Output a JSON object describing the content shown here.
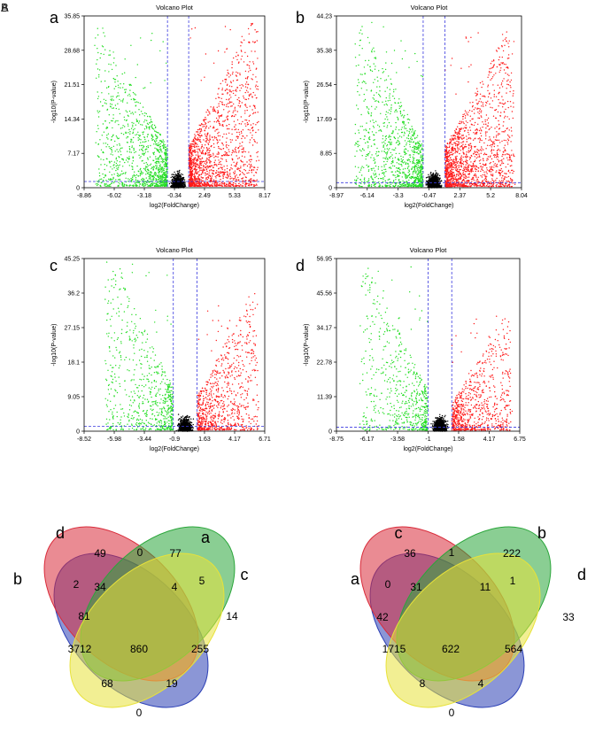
{
  "figure_letters": [
    "A",
    "B"
  ],
  "chart_data": [
    {
      "type": "scatter",
      "panel": "a",
      "title": "Volcano Plot",
      "xlabel": "log2(FoldChange)",
      "ylabel": "-log10(P-value)",
      "x_ticks": [
        "-8.86",
        "-6.02",
        "-3.18",
        "-0.34",
        "2.49",
        "5.33",
        "8.17"
      ],
      "y_ticks": [
        "0",
        "7.17",
        "14.34",
        "21.51",
        "28.68",
        "35.85"
      ],
      "xlim": [
        -8.86,
        8.17
      ],
      "ylim": [
        0,
        35.85
      ],
      "fc_cutoff": [
        -1,
        1
      ],
      "p_cutoff_log10": 1.3,
      "series": [
        {
          "name": "down",
          "color": "#22dd22",
          "approx_count": 1800,
          "x_range": [
            -8.0,
            -1.0
          ],
          "max_y": 33
        },
        {
          "name": "ns",
          "color": "#000000",
          "approx_count": 1500
        },
        {
          "name": "up",
          "color": "#ff1a1a",
          "approx_count": 2600,
          "x_range": [
            1.0,
            7.8
          ],
          "max_y": 34
        }
      ]
    },
    {
      "type": "scatter",
      "panel": "b",
      "title": "Volcano Plot",
      "xlabel": "log2(FoldChange)",
      "ylabel": "-log10(P-value)",
      "x_ticks": [
        "-8.97",
        "-6.14",
        "-3.3",
        "-0.47",
        "2.37",
        "5.2",
        "8.04"
      ],
      "y_ticks": [
        "0",
        "8.85",
        "17.69",
        "26.54",
        "35.38",
        "44.23"
      ],
      "xlim": [
        -8.97,
        8.04
      ],
      "ylim": [
        0,
        44.23
      ],
      "fc_cutoff": [
        -1,
        1
      ],
      "p_cutoff_log10": 1.3,
      "series": [
        {
          "name": "down",
          "color": "#22dd22",
          "approx_count": 1700,
          "x_range": [
            -7.5,
            -1.0
          ],
          "max_y": 43
        },
        {
          "name": "ns",
          "color": "#000000",
          "approx_count": 1500
        },
        {
          "name": "up",
          "color": "#ff1a1a",
          "approx_count": 2600,
          "x_range": [
            1.0,
            7.6
          ],
          "max_y": 40
        }
      ]
    },
    {
      "type": "scatter",
      "panel": "c",
      "title": "Volcano Plot",
      "xlabel": "log2(FoldChange)",
      "ylabel": "-log10(P-value)",
      "x_ticks": [
        "-8.52",
        "-5.98",
        "-3.44",
        "-0.9",
        "1.63",
        "4.17",
        "6.71"
      ],
      "y_ticks": [
        "0",
        "9.05",
        "18.1",
        "27.15",
        "36.2",
        "45.25"
      ],
      "xlim": [
        -8.52,
        6.71
      ],
      "ylim": [
        0,
        45.25
      ],
      "fc_cutoff": [
        -1,
        1
      ],
      "p_cutoff_log10": 1.3,
      "series": [
        {
          "name": "down",
          "color": "#22dd22",
          "approx_count": 1100,
          "x_range": [
            -7.0,
            -1.0
          ],
          "max_y": 45
        },
        {
          "name": "ns",
          "color": "#000000",
          "approx_count": 1300
        },
        {
          "name": "up",
          "color": "#ff1a1a",
          "approx_count": 1400,
          "x_range": [
            1.0,
            6.3
          ],
          "max_y": 36
        }
      ]
    },
    {
      "type": "scatter",
      "panel": "d",
      "title": "Volcano Plot",
      "xlabel": "log2(FoldChange)",
      "ylabel": "-log10(P-value)",
      "x_ticks": [
        "-8.75",
        "-6.17",
        "-3.58",
        "-1",
        "1.58",
        "4.17",
        "6.75"
      ],
      "y_ticks": [
        "0",
        "11.39",
        "22.78",
        "34.17",
        "45.56",
        "56.95"
      ],
      "xlim": [
        -8.75,
        6.75
      ],
      "ylim": [
        0,
        56.95
      ],
      "fc_cutoff": [
        -1,
        1
      ],
      "p_cutoff_log10": 1.3,
      "series": [
        {
          "name": "down",
          "color": "#22dd22",
          "approx_count": 1000,
          "x_range": [
            -7.0,
            -1.0
          ],
          "max_y": 55
        },
        {
          "name": "ns",
          "color": "#000000",
          "approx_count": 1300
        },
        {
          "name": "up",
          "color": "#ff1a1a",
          "approx_count": 1300,
          "x_range": [
            1.0,
            6.2
          ],
          "max_y": 38
        }
      ]
    },
    {
      "type": "venn",
      "sets": [
        {
          "label": "b",
          "color": "#2b3fb5"
        },
        {
          "label": "d",
          "color": "#d92b3a"
        },
        {
          "label": "a",
          "color": "#2aa63a"
        },
        {
          "label": "c",
          "color": "#e8e23a"
        }
      ],
      "regions": [
        {
          "value": "81"
        },
        {
          "value": "49"
        },
        {
          "value": "77"
        },
        {
          "value": "14"
        },
        {
          "value": "2"
        },
        {
          "value": "0"
        },
        {
          "value": "5"
        },
        {
          "value": "34"
        },
        {
          "value": "4"
        },
        {
          "value": "3712"
        },
        {
          "value": "860"
        },
        {
          "value": "255"
        },
        {
          "value": "68"
        },
        {
          "value": "19"
        },
        {
          "value": "0"
        }
      ]
    },
    {
      "type": "venn",
      "sets": [
        {
          "label": "a",
          "color": "#2b3fb5"
        },
        {
          "label": "c",
          "color": "#d92b3a"
        },
        {
          "label": "b",
          "color": "#2aa63a"
        },
        {
          "label": "d",
          "color": "#e8e23a"
        }
      ],
      "regions": [
        {
          "value": "42"
        },
        {
          "value": "36"
        },
        {
          "value": "222"
        },
        {
          "value": "33"
        },
        {
          "value": "0"
        },
        {
          "value": "1"
        },
        {
          "value": "1"
        },
        {
          "value": "31"
        },
        {
          "value": "11"
        },
        {
          "value": "1715"
        },
        {
          "value": "622"
        },
        {
          "value": "564"
        },
        {
          "value": "8"
        },
        {
          "value": "4"
        },
        {
          "value": "0"
        }
      ]
    }
  ]
}
